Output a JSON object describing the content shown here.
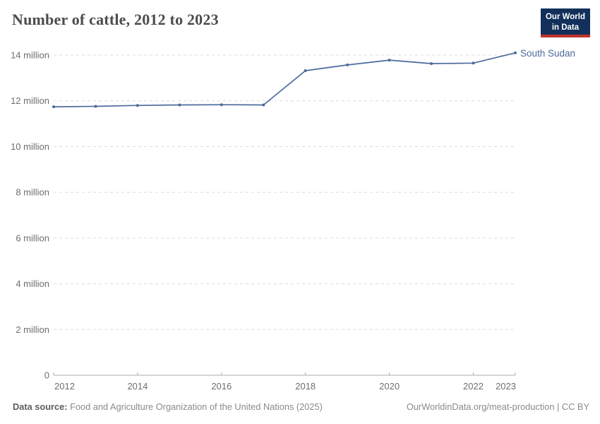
{
  "header": {
    "title": "Number of cattle, 2012 to 2023",
    "logo_line1": "Our World",
    "logo_line2": "in Data"
  },
  "chart_data": {
    "type": "line",
    "title": "Number of cattle, 2012 to 2023",
    "xlabel": "",
    "ylabel": "",
    "xlim": [
      2012,
      2023
    ],
    "ylim": [
      0,
      14
    ],
    "grid": "horizontal-dashed",
    "legend_position": "end-of-line-label",
    "x": [
      2012,
      2013,
      2014,
      2015,
      2016,
      2017,
      2018,
      2019,
      2020,
      2021,
      2022,
      2023
    ],
    "series": [
      {
        "name": "South Sudan",
        "unit": "cattle",
        "values_millions": [
          11.74,
          11.76,
          11.8,
          11.82,
          11.83,
          11.82,
          13.32,
          13.57,
          13.78,
          13.63,
          13.65,
          14.1
        ]
      }
    ],
    "x_ticks": [
      2012,
      2014,
      2016,
      2018,
      2020,
      2022,
      2023
    ],
    "y_ticks": [
      {
        "value": 0,
        "label": "0"
      },
      {
        "value": 2,
        "label": "2 million"
      },
      {
        "value": 4,
        "label": "4 million"
      },
      {
        "value": 6,
        "label": "6 million"
      },
      {
        "value": 8,
        "label": "8 million"
      },
      {
        "value": 10,
        "label": "10 million"
      },
      {
        "value": 12,
        "label": "12 million"
      },
      {
        "value": 14,
        "label": "14 million"
      }
    ]
  },
  "footer": {
    "source_label": "Data source:",
    "source_text": " Food and Agriculture Organization of the United Nations (2025)",
    "credit": "OurWorldinData.org/meat-production | CC BY"
  },
  "colors": {
    "line": "#4C6A9C",
    "entity_label": "#4C6A9C",
    "grid": "#DCDCDC",
    "axis": "#ADADAD",
    "tick_text": "#6E6E6E",
    "title_text": "#4C4C4C",
    "logo_bg": "#12305A",
    "logo_red": "#C0342B"
  }
}
